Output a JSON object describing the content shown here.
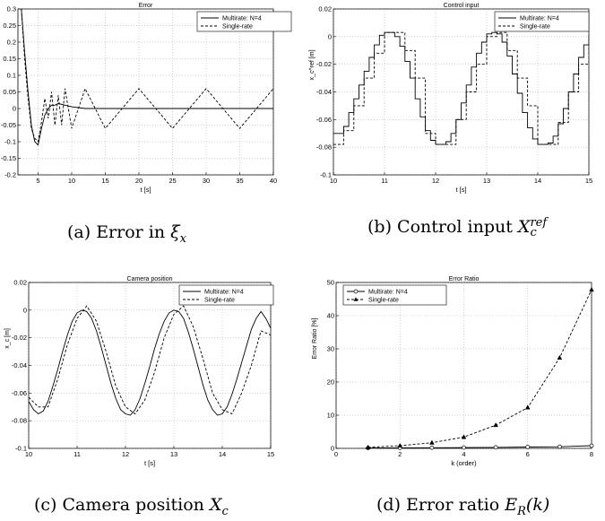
{
  "chart_data": [
    {
      "id": "a",
      "type": "line",
      "title": "Error",
      "xlabel": "t [s]",
      "ylabel": "ξx",
      "xlim": [
        2,
        40
      ],
      "ylim": [
        -0.2,
        0.3
      ],
      "xticks": [
        "5",
        "10",
        "15",
        "20",
        "25",
        "30",
        "35",
        "40"
      ],
      "yticks": [
        "0.3",
        "0.25",
        "0.2",
        "0.15",
        "0.1",
        "0.05",
        "0",
        "-0.05",
        "-0.1",
        "-0.15",
        "-0.2"
      ],
      "grid": true,
      "legend_position": "top-right",
      "series": [
        {
          "name": "Multirate: N=4",
          "style": "solid",
          "x": [
            2.5,
            3,
            3.5,
            4,
            4.5,
            5,
            5.5,
            6,
            6.5,
            7,
            7.5,
            8,
            9,
            10,
            12,
            15,
            20,
            25,
            30,
            35,
            40
          ],
          "y": [
            0.3,
            0.17,
            0.05,
            -0.05,
            -0.1,
            -0.11,
            -0.06,
            -0.02,
            0.0,
            0.01,
            0.01,
            0.015,
            0.01,
            0.005,
            0.0,
            0.0,
            0.0,
            0.0,
            0.0,
            0.0,
            0.0
          ]
        },
        {
          "name": "Single-rate",
          "style": "dashed",
          "x": [
            2.5,
            3,
            3.5,
            4,
            4.5,
            5,
            5.5,
            6,
            6.5,
            7,
            7.5,
            8,
            8.5,
            9,
            10,
            12,
            15,
            20,
            25,
            30,
            35,
            40
          ],
          "y": [
            0.3,
            0.15,
            0.03,
            -0.06,
            -0.09,
            -0.1,
            -0.04,
            0.03,
            -0.03,
            0.05,
            -0.05,
            0.04,
            -0.05,
            0.06,
            -0.06,
            0.06,
            -0.06,
            0.06,
            -0.06,
            0.06,
            -0.06,
            0.06
          ]
        }
      ]
    },
    {
      "id": "b",
      "type": "line",
      "title": "Control input",
      "xlabel": "t [s]",
      "ylabel": "x_c^ref [m]",
      "xlim": [
        10,
        15
      ],
      "ylim": [
        -0.1,
        0.02
      ],
      "xticks": [
        "10",
        "11",
        "12",
        "13",
        "14",
        "15"
      ],
      "yticks": [
        "0.02",
        "0",
        "-0.02",
        "-0.04",
        "-0.06",
        "-0.08",
        "-0.1"
      ],
      "grid": true,
      "legend_position": "top-right",
      "series": [
        {
          "name": "Multirate: N=4",
          "style": "solid-staircase",
          "x": [
            10,
            10.1,
            10.2,
            10.3,
            10.4,
            10.5,
            10.6,
            10.7,
            10.8,
            10.9,
            11,
            11.1,
            11.2,
            11.3,
            11.4,
            11.5,
            11.6,
            11.7,
            11.8,
            11.9,
            12,
            12.1,
            12.2,
            12.3,
            12.4,
            12.5,
            12.6,
            12.7,
            12.8,
            12.9,
            13,
            13.1,
            13.2,
            13.3,
            13.4,
            13.5,
            13.6,
            13.7,
            13.8,
            13.9,
            14,
            14.1,
            14.2,
            14.3,
            14.4,
            14.5,
            14.6,
            14.7,
            14.8,
            14.9,
            15
          ],
          "y": [
            -0.07,
            -0.07,
            -0.065,
            -0.055,
            -0.045,
            -0.035,
            -0.025,
            -0.015,
            -0.006,
            0.001,
            0.003,
            0.003,
            0.0,
            -0.007,
            -0.018,
            -0.03,
            -0.045,
            -0.058,
            -0.068,
            -0.075,
            -0.078,
            -0.078,
            -0.076,
            -0.07,
            -0.06,
            -0.048,
            -0.035,
            -0.022,
            -0.012,
            -0.004,
            0.002,
            0.003,
            0.002,
            -0.004,
            -0.014,
            -0.027,
            -0.041,
            -0.055,
            -0.066,
            -0.074,
            -0.078,
            -0.078,
            -0.077,
            -0.072,
            -0.063,
            -0.052,
            -0.04,
            -0.027,
            -0.015,
            -0.006,
            0.001
          ]
        },
        {
          "name": "Single-rate",
          "style": "dashed-staircase",
          "x": [
            10,
            10.2,
            10.4,
            10.6,
            10.8,
            11,
            11.2,
            11.4,
            11.6,
            11.8,
            12,
            12.2,
            12.4,
            12.6,
            12.8,
            13,
            13.2,
            13.4,
            13.6,
            13.8,
            14,
            14.2,
            14.4,
            14.6,
            14.8,
            15
          ],
          "y": [
            -0.078,
            -0.068,
            -0.05,
            -0.03,
            -0.012,
            0.003,
            0.003,
            -0.01,
            -0.03,
            -0.07,
            -0.078,
            -0.078,
            -0.06,
            -0.04,
            -0.02,
            0.0,
            0.003,
            -0.01,
            -0.03,
            -0.05,
            -0.078,
            -0.078,
            -0.062,
            -0.04,
            -0.02,
            0.0
          ]
        }
      ]
    },
    {
      "id": "c",
      "type": "line",
      "title": "Camera position",
      "xlabel": "t [s]",
      "ylabel": "x_c [m]",
      "xlim": [
        10,
        15
      ],
      "ylim": [
        -0.1,
        0.02
      ],
      "xticks": [
        "10",
        "11",
        "12",
        "13",
        "14",
        "15"
      ],
      "yticks": [
        "0.02",
        "0",
        "-0.02",
        "-0.04",
        "-0.06",
        "-0.08",
        "-0.1"
      ],
      "grid": true,
      "legend_position": "top-right",
      "series": [
        {
          "name": "Multirate: N=4",
          "style": "solid",
          "x": [
            10,
            10.1,
            10.2,
            10.3,
            10.4,
            10.5,
            10.6,
            10.7,
            10.8,
            10.9,
            11,
            11.1,
            11.2,
            11.3,
            11.4,
            11.5,
            11.6,
            11.7,
            11.8,
            11.9,
            12,
            12.1,
            12.2,
            12.3,
            12.4,
            12.5,
            12.6,
            12.7,
            12.8,
            12.9,
            13,
            13.1,
            13.2,
            13.3,
            13.4,
            13.5,
            13.6,
            13.7,
            13.8,
            13.9,
            14,
            14.1,
            14.2,
            14.3,
            14.4,
            14.5,
            14.6,
            14.7,
            14.8,
            14.9,
            15
          ],
          "y": [
            -0.066,
            -0.072,
            -0.075,
            -0.073,
            -0.066,
            -0.055,
            -0.043,
            -0.03,
            -0.018,
            -0.008,
            -0.002,
            0.0,
            -0.001,
            -0.006,
            -0.015,
            -0.027,
            -0.04,
            -0.053,
            -0.064,
            -0.072,
            -0.075,
            -0.076,
            -0.072,
            -0.064,
            -0.053,
            -0.041,
            -0.028,
            -0.017,
            -0.008,
            -0.002,
            0.0,
            -0.001,
            -0.006,
            -0.016,
            -0.028,
            -0.041,
            -0.054,
            -0.065,
            -0.072,
            -0.076,
            -0.075,
            -0.07,
            -0.061,
            -0.05,
            -0.038,
            -0.026,
            -0.014,
            -0.006,
            -0.001,
            -0.006,
            -0.013
          ]
        },
        {
          "name": "Single-rate",
          "style": "dashed",
          "x": [
            10,
            10.2,
            10.4,
            10.6,
            10.8,
            11,
            11.2,
            11.4,
            11.6,
            11.8,
            12,
            12.2,
            12.4,
            12.6,
            12.8,
            13,
            13.2,
            13.4,
            13.6,
            13.8,
            14,
            14.2,
            14.4,
            14.6,
            14.8,
            15
          ],
          "y": [
            -0.063,
            -0.07,
            -0.07,
            -0.05,
            -0.025,
            -0.006,
            0.003,
            -0.008,
            -0.03,
            -0.055,
            -0.07,
            -0.075,
            -0.065,
            -0.045,
            -0.02,
            -0.003,
            0.003,
            -0.012,
            -0.035,
            -0.06,
            -0.072,
            -0.075,
            -0.06,
            -0.04,
            -0.015,
            -0.018
          ]
        }
      ]
    },
    {
      "id": "d",
      "type": "line",
      "title": "Error Ratio",
      "xlabel": "k (order)",
      "ylabel": "Error Ratio [%]",
      "xlim": [
        0,
        8
      ],
      "ylim": [
        0,
        50
      ],
      "xticks": [
        "0",
        "2",
        "4",
        "6",
        "8"
      ],
      "yticks": [
        "50",
        "40",
        "30",
        "20",
        "10",
        "0"
      ],
      "grid": true,
      "legend_position": "top-left",
      "series": [
        {
          "name": "Multirate: N=4",
          "style": "solid",
          "marker": "circle",
          "x": [
            1,
            2,
            3,
            4,
            5,
            6,
            7,
            8
          ],
          "y": [
            0.1,
            0.15,
            0.2,
            0.25,
            0.3,
            0.4,
            0.5,
            0.8
          ]
        },
        {
          "name": "Single-rate",
          "style": "dashed",
          "marker": "triangle",
          "x": [
            1,
            2,
            3,
            4,
            5,
            6,
            7,
            8
          ],
          "y": [
            0.3,
            0.8,
            1.7,
            3.4,
            7.0,
            12.3,
            27.3,
            47.8
          ]
        }
      ]
    }
  ],
  "captions": {
    "a": {
      "prefix": "(a) Error in ",
      "sym": "ξ",
      "sub": "x",
      "suffix": ""
    },
    "b": {
      "prefix": "(b) Control input ",
      "sym": "X",
      "sub": "c",
      "sup": "ref"
    },
    "c": {
      "prefix": "(c) Camera position ",
      "sym": "X",
      "sub": "c"
    },
    "d": {
      "prefix": "(d) Error ratio ",
      "sym": "E",
      "sub": "R",
      "suffix": "(k)"
    }
  }
}
